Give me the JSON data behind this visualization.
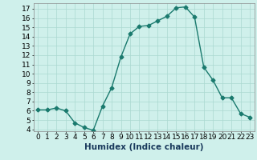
{
  "x": [
    0,
    1,
    2,
    3,
    4,
    5,
    6,
    7,
    8,
    9,
    10,
    11,
    12,
    13,
    14,
    15,
    16,
    17,
    18,
    19,
    20,
    21,
    22,
    23
  ],
  "y": [
    6.1,
    6.1,
    6.3,
    6.0,
    4.7,
    4.2,
    3.9,
    6.5,
    8.5,
    11.8,
    14.3,
    15.1,
    15.2,
    15.7,
    16.2,
    17.1,
    17.2,
    16.1,
    10.7,
    9.3,
    7.4,
    7.4,
    5.7,
    5.3
  ],
  "line_color": "#1a7a6e",
  "marker": "D",
  "markersize": 2.5,
  "linewidth": 1.0,
  "bg_color": "#cff0eb",
  "grid_color": "#aad8d0",
  "xlabel": "Humidex (Indice chaleur)",
  "xlim": [
    -0.5,
    23.5
  ],
  "ylim": [
    3.8,
    17.6
  ],
  "yticks": [
    4,
    5,
    6,
    7,
    8,
    9,
    10,
    11,
    12,
    13,
    14,
    15,
    16,
    17
  ],
  "xticks": [
    0,
    1,
    2,
    3,
    4,
    5,
    6,
    7,
    8,
    9,
    10,
    11,
    12,
    13,
    14,
    15,
    16,
    17,
    18,
    19,
    20,
    21,
    22,
    23
  ],
  "tick_fontsize": 6.5,
  "xlabel_fontsize": 7.5,
  "xlabel_color": "#1a3a5c"
}
